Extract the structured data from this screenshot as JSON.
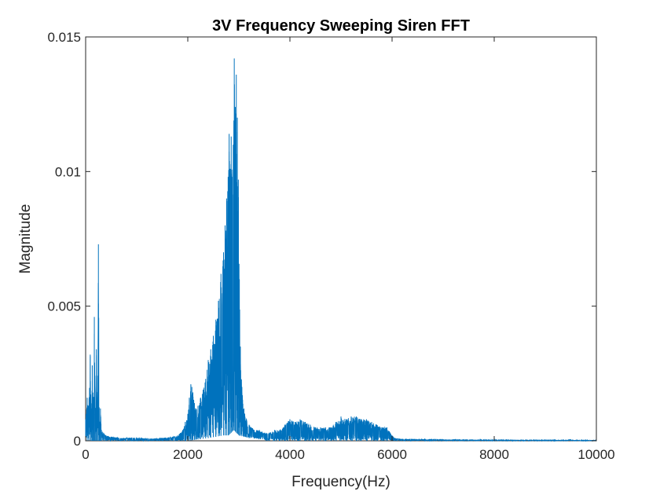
{
  "chart_data": {
    "type": "line",
    "title": "3V Frequency Sweeping Siren FFT",
    "xlabel": "Frequency(Hz)",
    "ylabel": "Magnitude",
    "xlim": [
      0,
      10000
    ],
    "ylim": [
      0,
      0.015
    ],
    "x_ticks": [
      {
        "value": 0,
        "label": "0"
      },
      {
        "value": 2000,
        "label": "2000"
      },
      {
        "value": 4000,
        "label": "4000"
      },
      {
        "value": 6000,
        "label": "6000"
      },
      {
        "value": 8000,
        "label": "8000"
      },
      {
        "value": 10000,
        "label": "10000"
      }
    ],
    "y_ticks": [
      {
        "value": 0,
        "label": "0"
      },
      {
        "value": 0.005,
        "label": "0.005"
      },
      {
        "value": 0.01,
        "label": "0.01"
      },
      {
        "value": 0.015,
        "label": "0.015"
      }
    ],
    "grid": false,
    "line_color": "#0072BD",
    "series": [
      {
        "x": [
          0,
          30,
          60,
          90,
          110,
          130,
          150,
          170,
          190,
          210,
          230,
          250,
          270,
          290,
          310,
          350,
          400,
          500,
          700,
          900,
          1100,
          1300,
          1500,
          1700,
          1800,
          1900,
          1950,
          2000,
          2030,
          2060,
          2080,
          2100,
          2130,
          2160,
          2200,
          2250,
          2300,
          2350,
          2400,
          2450,
          2500,
          2550,
          2600,
          2650,
          2700,
          2730,
          2760,
          2790,
          2810,
          2830,
          2850,
          2870,
          2890,
          2910,
          2930,
          2950,
          2970,
          2990,
          3010,
          3030,
          3060,
          3100,
          3150,
          3200,
          3300,
          3400,
          3500,
          3600,
          3700,
          3800,
          3900,
          4000,
          4100,
          4200,
          4300,
          4400,
          4500,
          4600,
          4700,
          4800,
          4900,
          5000,
          5100,
          5200,
          5300,
          5400,
          5500,
          5600,
          5700,
          5800,
          5900,
          6000,
          6050,
          6100,
          6200,
          6400,
          6600,
          6800,
          7000,
          7200,
          7400,
          7600,
          7800,
          8000,
          8200,
          8400,
          8600,
          8800,
          9000,
          9200,
          9400,
          9500,
          9560,
          9600,
          9700,
          9800,
          9900,
          10000
        ],
        "y": [
          0.0008,
          0.0016,
          0.0013,
          0.0032,
          0.0011,
          0.0028,
          0.0013,
          0.0046,
          0.001,
          0.0034,
          0.0008,
          0.0073,
          0.0006,
          0.0012,
          0.0004,
          0.0003,
          0.0002,
          0.00015,
          0.0001,
          0.00012,
          0.0001,
          8e-05,
          0.0001,
          0.00015,
          0.0002,
          0.0004,
          0.0007,
          0.001,
          0.0016,
          0.0021,
          0.002,
          0.0018,
          0.0014,
          0.0012,
          0.0013,
          0.0016,
          0.0019,
          0.0023,
          0.003,
          0.0034,
          0.0039,
          0.0045,
          0.0052,
          0.0062,
          0.007,
          0.008,
          0.009,
          0.0098,
          0.0114,
          0.0101,
          0.0113,
          0.0098,
          0.011,
          0.0142,
          0.0124,
          0.0136,
          0.012,
          0.0097,
          0.006,
          0.0035,
          0.002,
          0.0012,
          0.0008,
          0.0006,
          0.0004,
          0.0004,
          0.0003,
          0.0003,
          0.0004,
          0.0004,
          0.0006,
          0.0008,
          0.0007,
          0.0008,
          0.0007,
          0.0006,
          0.0005,
          0.0005,
          0.0005,
          0.0005,
          0.0007,
          0.0009,
          0.0008,
          0.0009,
          0.0009,
          0.0008,
          0.0008,
          0.0007,
          0.0006,
          0.0005,
          0.0005,
          0.0002,
          0.0001,
          8e-05,
          7e-05,
          6e-05,
          6e-05,
          5e-05,
          5e-05,
          5e-05,
          4e-05,
          4e-05,
          4e-05,
          4e-05,
          4e-05,
          3e-05,
          3e-05,
          3e-05,
          3e-05,
          3e-05,
          3e-05,
          5e-05,
          3e-05,
          3e-05,
          2e-05,
          2e-05,
          2e-05,
          2e-05
        ],
        "min_envelope": [
          [
            2000,
            0.0
          ],
          [
            2400,
            0.0001
          ],
          [
            2700,
            0.0002
          ],
          [
            2800,
            0.0002
          ],
          [
            2900,
            0.0004
          ],
          [
            3000,
            0.0002
          ],
          [
            3200,
            0.0001
          ],
          [
            3500,
            5e-05
          ]
        ]
      }
    ]
  }
}
